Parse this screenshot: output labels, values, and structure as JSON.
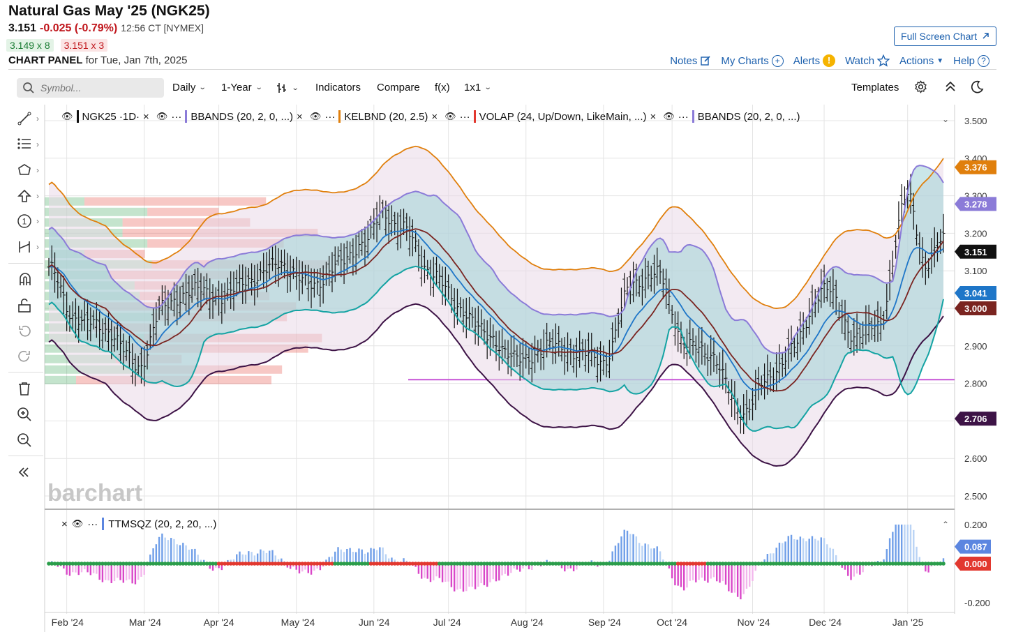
{
  "header": {
    "title": "Natural Gas May '25 (NGK25)",
    "last": "3.151",
    "change": "-0.025 (-0.79%)",
    "time": "12:56 CT [NYMEX]",
    "bid": "3.149 x 8",
    "ask": "3.151 x 3",
    "panel_label": "CHART PANEL",
    "panel_date": "for Tue, Jan 7th, 2025",
    "fullscreen": "Full Screen Chart"
  },
  "toplinks": {
    "notes": "Notes",
    "mycharts": "My Charts",
    "alerts": "Alerts",
    "watch": "Watch",
    "actions": "Actions",
    "help": "Help"
  },
  "toolbar": {
    "symbol_placeholder": "Symbol...",
    "period": "Daily",
    "range": "1-Year",
    "indicators": "Indicators",
    "compare": "Compare",
    "fx": "f(x)",
    "layout": "1x1",
    "templates": "Templates"
  },
  "legend": {
    "main": "NGK25 ·1D·",
    "bb1": "BBANDS (20, 2, 0, ...)",
    "kel": "KELBND (20, 2.5)",
    "volap": "VOLAP (24, Up/Down, LikeMain, ...)",
    "bb2": "BBANDS (20, 2, 0, ...)",
    "ttm": "TTMSQZ (20, 2, 20, ...)",
    "more": "···"
  },
  "colors": {
    "kelt": "#e07f0c",
    "bb": "#8b7bd8",
    "ma": "#7a2420",
    "ema": "#1e76c8",
    "lower": "#14a3a3",
    "low2": "#3d1346",
    "volap_line": "#c654d6",
    "up": "#2a9d4a",
    "down": "#e2382f"
  },
  "chart_data": [
    {
      "type": "candlestick-ohlc",
      "title": "Natural Gas May '25 (NGK25) Daily",
      "y_ticks": [
        "3.500",
        "3.400",
        "3.300",
        "3.200",
        "3.100",
        "3.000",
        "2.900",
        "2.800",
        "2.700",
        "2.600",
        "2.500"
      ],
      "ylim": [
        2.5,
        3.5
      ],
      "x_ticks": [
        "Feb '24",
        "Mar '24",
        "Apr '24",
        "May '24",
        "Jun '24",
        "Jul '24",
        "Aug '24",
        "Sep '24",
        "Oct '24",
        "Nov '24",
        "Dec '24",
        "Jan '25"
      ],
      "close_series": [
        [
          0,
          3.11
        ],
        [
          8,
          2.98
        ],
        [
          20,
          2.94
        ],
        [
          30,
          2.84
        ],
        [
          38,
          3.0
        ],
        [
          48,
          3.05
        ],
        [
          58,
          3.03
        ],
        [
          68,
          3.08
        ],
        [
          78,
          3.12
        ],
        [
          88,
          3.06
        ],
        [
          98,
          3.12
        ],
        [
          106,
          3.18
        ],
        [
          112,
          3.25
        ],
        [
          118,
          3.22
        ],
        [
          128,
          3.1
        ],
        [
          138,
          3.0
        ],
        [
          148,
          2.92
        ],
        [
          158,
          2.86
        ],
        [
          168,
          2.9
        ],
        [
          178,
          2.88
        ],
        [
          186,
          2.86
        ],
        [
          196,
          3.07
        ],
        [
          204,
          3.09
        ],
        [
          214,
          2.9
        ],
        [
          222,
          2.88
        ],
        [
          232,
          2.72
        ],
        [
          240,
          2.8
        ],
        [
          250,
          2.9
        ],
        [
          260,
          3.06
        ],
        [
          270,
          2.93
        ],
        [
          278,
          2.95
        ],
        [
          288,
          3.3
        ],
        [
          294,
          3.12
        ],
        [
          300,
          3.18
        ]
      ],
      "price_labels": [
        {
          "name": "KELBND upper",
          "value": "3.376"
        },
        {
          "name": "BBANDS upper",
          "value": "3.278"
        },
        {
          "name": "Last",
          "value": "3.151"
        },
        {
          "name": "EMA",
          "value": "3.041"
        },
        {
          "name": "SMA",
          "value": "3.000"
        },
        {
          "name": "BBANDS lower",
          "value": "2.706"
        }
      ],
      "volap_poc": 2.81,
      "watermark": "barchart"
    },
    {
      "type": "histogram",
      "title": "TTMSQZ (20, 2, 20, ...)",
      "y_ticks": [
        "0.200",
        "-0.200"
      ],
      "ylim": [
        -0.22,
        0.22
      ],
      "current": "0.087",
      "zero_label": "0.000",
      "squeeze_off_ranges": [
        [
          "Mar '24",
          "Apr '24"
        ],
        [
          "Apr '24",
          "May '24"
        ],
        [
          "Sep '24",
          "Sep '24"
        ]
      ]
    }
  ]
}
